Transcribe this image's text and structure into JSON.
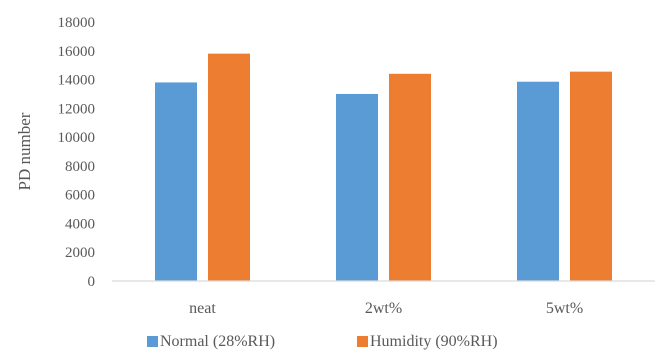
{
  "chart_data": {
    "type": "bar",
    "categories": [
      "neat",
      "2wt%",
      "5wt%"
    ],
    "series": [
      {
        "name": "Normal (28%RH)",
        "values": [
          13800,
          13000,
          13850
        ],
        "color": "#5b9bd5"
      },
      {
        "name": "Humidity (90%RH)",
        "values": [
          15800,
          14400,
          14550
        ],
        "color": "#ed7d31"
      }
    ],
    "title": "",
    "xlabel": "",
    "ylabel": "PD number",
    "ylim": [
      0,
      18000
    ],
    "yticks": [
      0,
      2000,
      4000,
      6000,
      8000,
      10000,
      12000,
      14000,
      16000,
      18000
    ],
    "grid": false,
    "legend": "bottom-center",
    "axis_color": "#d9d9d9"
  }
}
